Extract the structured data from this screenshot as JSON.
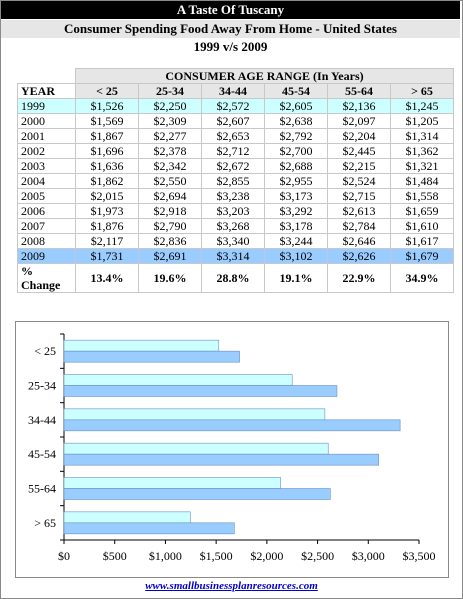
{
  "header": {
    "title": "A Taste Of Tuscany",
    "subtitle": "Consumer Spending Food Away From Home - United States",
    "period": "1999 v/s 2009"
  },
  "table": {
    "year_header": "YEAR",
    "range_header": "CONSUMER  AGE  RANGE    (In Years)",
    "columns": [
      "< 25",
      "25-34",
      "34-44",
      "45-54",
      "55-64",
      "> 65"
    ],
    "rows": [
      {
        "year": "1999",
        "values": [
          "$1,526",
          "$2,250",
          "$2,572",
          "$2,605",
          "$2,136",
          "$1,245"
        ]
      },
      {
        "year": "2000",
        "values": [
          "$1,569",
          "$2,309",
          "$2,607",
          "$2,638",
          "$2,097",
          "$1,205"
        ]
      },
      {
        "year": "2001",
        "values": [
          "$1,867",
          "$2,277",
          "$2,653",
          "$2,792",
          "$2,204",
          "$1,314"
        ]
      },
      {
        "year": "2002",
        "values": [
          "$1,696",
          "$2,378",
          "$2,712",
          "$2,700",
          "$2,445",
          "$1,362"
        ]
      },
      {
        "year": "2003",
        "values": [
          "$1,636",
          "$2,342",
          "$2,672",
          "$2,688",
          "$2,215",
          "$1,321"
        ]
      },
      {
        "year": "2004",
        "values": [
          "$1,862",
          "$2,550",
          "$2,855",
          "$2,955",
          "$2,524",
          "$1,484"
        ]
      },
      {
        "year": "2005",
        "values": [
          "$2,015",
          "$2,694",
          "$3,238",
          "$3,173",
          "$2,715",
          "$1,558"
        ]
      },
      {
        "year": "2006",
        "values": [
          "$1,973",
          "$2,918",
          "$3,203",
          "$3,292",
          "$2,613",
          "$1,659"
        ]
      },
      {
        "year": "2007",
        "values": [
          "$1,876",
          "$2,790",
          "$3,268",
          "$3,178",
          "$2,784",
          "$1,610"
        ]
      },
      {
        "year": "2008",
        "values": [
          "$2,117",
          "$2,836",
          "$3,340",
          "$3,244",
          "$2,646",
          "$1,617"
        ]
      },
      {
        "year": "2009",
        "values": [
          "$1,731",
          "$2,691",
          "$3,314",
          "$3,102",
          "$2,626",
          "$1,679"
        ]
      }
    ],
    "pct_change_label": "% Change",
    "pct_change": [
      "13.4%",
      "19.6%",
      "28.8%",
      "19.1%",
      "22.9%",
      "34.9%"
    ]
  },
  "chart_data": {
    "type": "bar",
    "orientation": "horizontal",
    "categories": [
      "< 25",
      "25-34",
      "34-44",
      "45-54",
      "55-64",
      "> 65"
    ],
    "series": [
      {
        "values": [
          1526,
          2250,
          2572,
          2605,
          2136,
          1245
        ],
        "color": "#ccffff"
      },
      {
        "values": [
          1731,
          2691,
          3314,
          3102,
          2626,
          1679
        ],
        "color": "#99ccff"
      }
    ],
    "xlim": [
      0,
      3500
    ],
    "x_ticks": [
      "$0",
      "$500",
      "$1,000",
      "$1,500",
      "$2,000",
      "$2,500",
      "$3,000",
      "$3,500"
    ],
    "grid": false,
    "legend": "none"
  },
  "colors": {
    "row_1999": "#ccffff",
    "row_2009": "#99ccff",
    "header_bg": "#e6e6e6",
    "bar_1999": "#ccffff",
    "bar_2009": "#99ccff"
  },
  "footer": {
    "link_text": "www.smallbusinessplanresources.com"
  }
}
